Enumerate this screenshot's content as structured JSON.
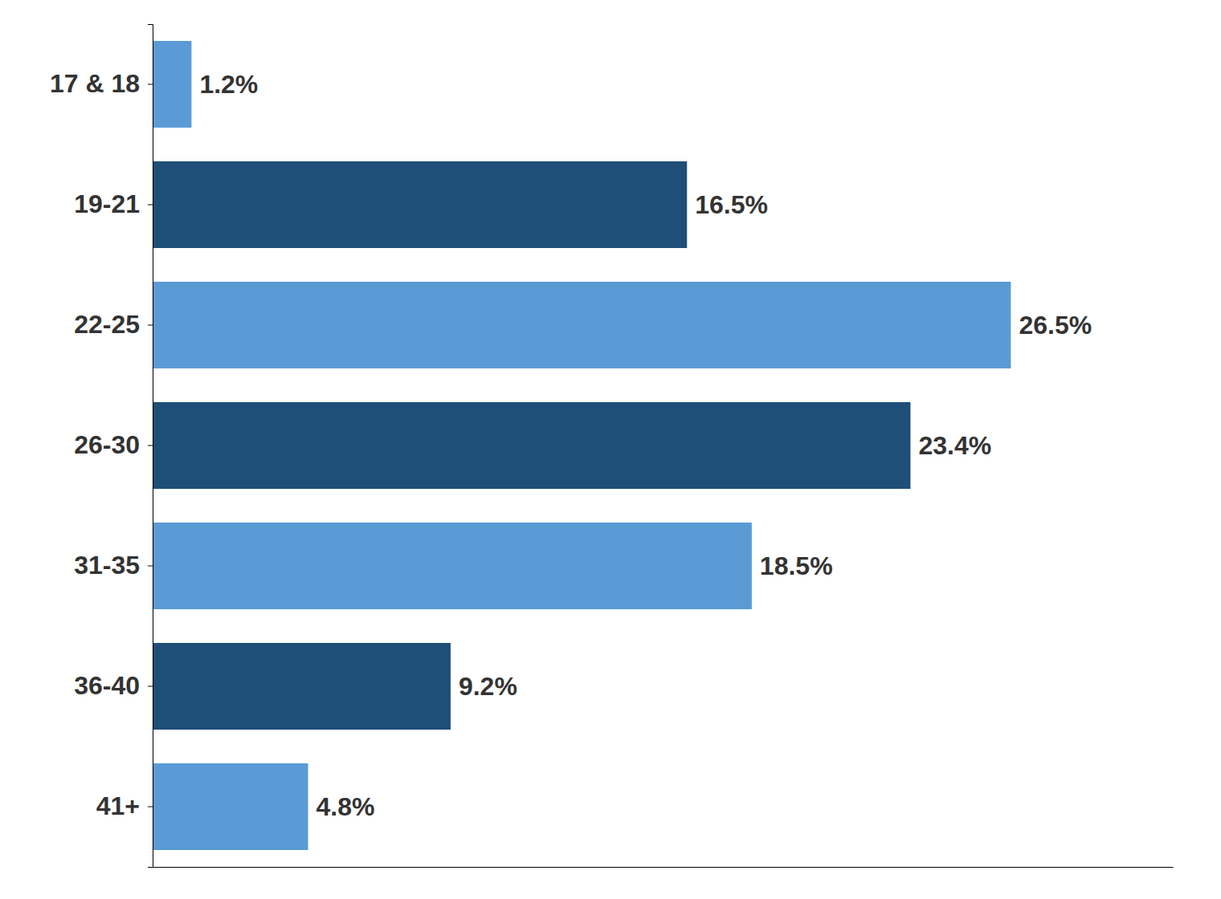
{
  "chart_data": {
    "type": "bar",
    "orientation": "horizontal",
    "categories": [
      "17 & 18",
      "19-21",
      "22-25",
      "26-30",
      "31-35",
      "36-40",
      "41+"
    ],
    "values": [
      1.2,
      16.5,
      26.5,
      23.4,
      18.5,
      9.2,
      4.8
    ],
    "value_labels": [
      "1.2%",
      "16.5%",
      "26.5%",
      "23.4%",
      "18.5%",
      "9.2%",
      "4.8%"
    ],
    "colors": [
      "#5B9BD5",
      "#1F4E79",
      "#5B9BD5",
      "#1F4E79",
      "#5B9BD5",
      "#1F4E79",
      "#5B9BD5"
    ],
    "xlim": [
      0,
      31.5
    ],
    "data_labels": true,
    "grid": false,
    "tick_labels": "y"
  }
}
